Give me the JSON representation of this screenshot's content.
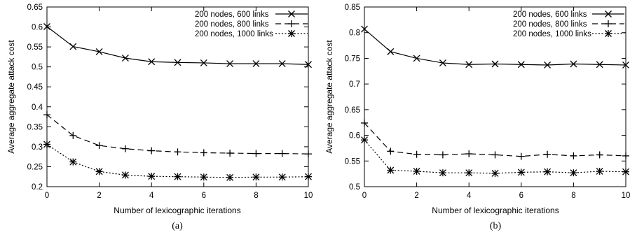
{
  "chart_data": [
    {
      "type": "line",
      "caption": "(a)",
      "xlabel": "Number of lexicographic iterations",
      "ylabel": "Average aggregate attack cost",
      "xlim": [
        0,
        10
      ],
      "ylim": [
        0.2,
        0.65
      ],
      "xticks": [
        "0",
        "2",
        "4",
        "6",
        "8",
        "10"
      ],
      "yticks": [
        "0.2",
        "0.25",
        "0.3",
        "0.35",
        "0.4",
        "0.45",
        "0.5",
        "0.55",
        "0.6",
        "0.65"
      ],
      "legend_position": "top-right",
      "grid": false,
      "x": [
        0,
        1,
        2,
        3,
        4,
        5,
        6,
        7,
        8,
        9,
        10
      ],
      "series": [
        {
          "name": "200 nodes, 600 links",
          "marker": "x",
          "dash": "solid",
          "values": [
            0.601,
            0.551,
            0.538,
            0.522,
            0.513,
            0.511,
            0.51,
            0.508,
            0.508,
            0.508,
            0.506
          ]
        },
        {
          "name": "200 nodes, 800 links",
          "marker": "plus",
          "dash": "dashed",
          "values": [
            0.38,
            0.328,
            0.303,
            0.295,
            0.29,
            0.287,
            0.285,
            0.284,
            0.283,
            0.283,
            0.282
          ]
        },
        {
          "name": "200 nodes, 1000 links",
          "marker": "star",
          "dash": "dotted",
          "values": [
            0.306,
            0.262,
            0.238,
            0.229,
            0.226,
            0.225,
            0.224,
            0.223,
            0.224,
            0.224,
            0.225
          ]
        }
      ]
    },
    {
      "type": "line",
      "caption": "(b)",
      "xlabel": "Number of lexicographic iterations",
      "ylabel": "Average aggregate attack cost",
      "xlim": [
        0,
        10
      ],
      "ylim": [
        0.5,
        0.85
      ],
      "xticks": [
        "0",
        "2",
        "4",
        "6",
        "8",
        "10"
      ],
      "yticks": [
        "0.5",
        "0.55",
        "0.6",
        "0.65",
        "0.7",
        "0.75",
        "0.8",
        "0.85"
      ],
      "legend_position": "top-right",
      "grid": false,
      "x": [
        0,
        1,
        2,
        3,
        4,
        5,
        6,
        7,
        8,
        9,
        10
      ],
      "series": [
        {
          "name": "200 nodes, 600 links",
          "marker": "x",
          "dash": "solid",
          "values": [
            0.807,
            0.763,
            0.75,
            0.741,
            0.738,
            0.739,
            0.738,
            0.737,
            0.739,
            0.738,
            0.737
          ]
        },
        {
          "name": "200 nodes, 800 links",
          "marker": "plus",
          "dash": "dashed",
          "values": [
            0.624,
            0.569,
            0.563,
            0.562,
            0.564,
            0.562,
            0.559,
            0.563,
            0.56,
            0.562,
            0.56
          ]
        },
        {
          "name": "200 nodes, 1000 links",
          "marker": "star",
          "dash": "dotted",
          "values": [
            0.591,
            0.532,
            0.53,
            0.527,
            0.527,
            0.526,
            0.528,
            0.529,
            0.527,
            0.53,
            0.529
          ]
        }
      ]
    }
  ]
}
